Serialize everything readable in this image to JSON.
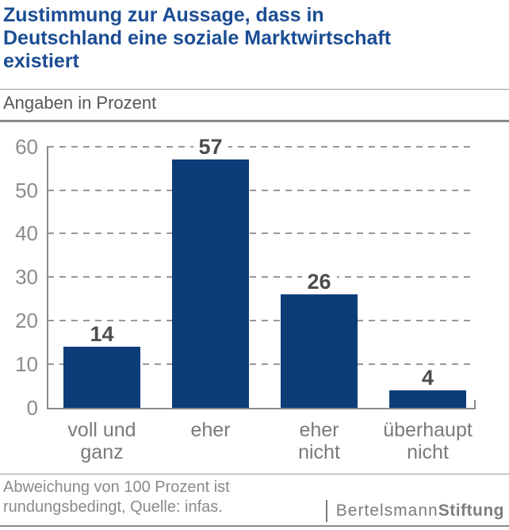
{
  "header": {
    "title_lines": [
      "Zustimmung zur Aussage, dass in",
      "Deutschland eine soziale Marktwirtschaft",
      "existiert"
    ],
    "subtitle": "Angaben in Prozent"
  },
  "chart_data": {
    "type": "bar",
    "title": "Zustimmung zur Aussage, dass in Deutschland eine soziale Marktwirtschaft existiert",
    "units_label": "Angaben in Prozent",
    "categories": [
      "voll und ganz",
      "eher",
      "eher nicht",
      "überhaupt nicht"
    ],
    "category_lines": [
      [
        "voll und",
        "ganz"
      ],
      [
        "eher"
      ],
      [
        "eher",
        "nicht"
      ],
      [
        "überhaupt",
        "nicht"
      ]
    ],
    "values": [
      14,
      57,
      26,
      4
    ],
    "yticks": [
      0,
      10,
      20,
      30,
      40,
      50,
      60
    ],
    "ylim": [
      0,
      60
    ],
    "grid": "horizontal-dashed",
    "legend": "none",
    "bar_color": "#0d3c78",
    "value_label_color": "#4d4d4d",
    "tick_label_color": "#8c8c8c",
    "grid_color": "#989898"
  },
  "footer": {
    "note_lines": [
      "Abweichung von 100 Prozent ist",
      "rundungsbedingt, Quelle: infas."
    ],
    "logo": {
      "part1": "Bertelsmann",
      "part2": "Stiftung"
    }
  },
  "colors": {
    "title_blue": "#1b4d94",
    "bar_blue": "#0d3c78",
    "separator_gray": "#8a8a8a",
    "note_gray": "#8a8a8a",
    "logo_gray": "#7d7d7d"
  }
}
